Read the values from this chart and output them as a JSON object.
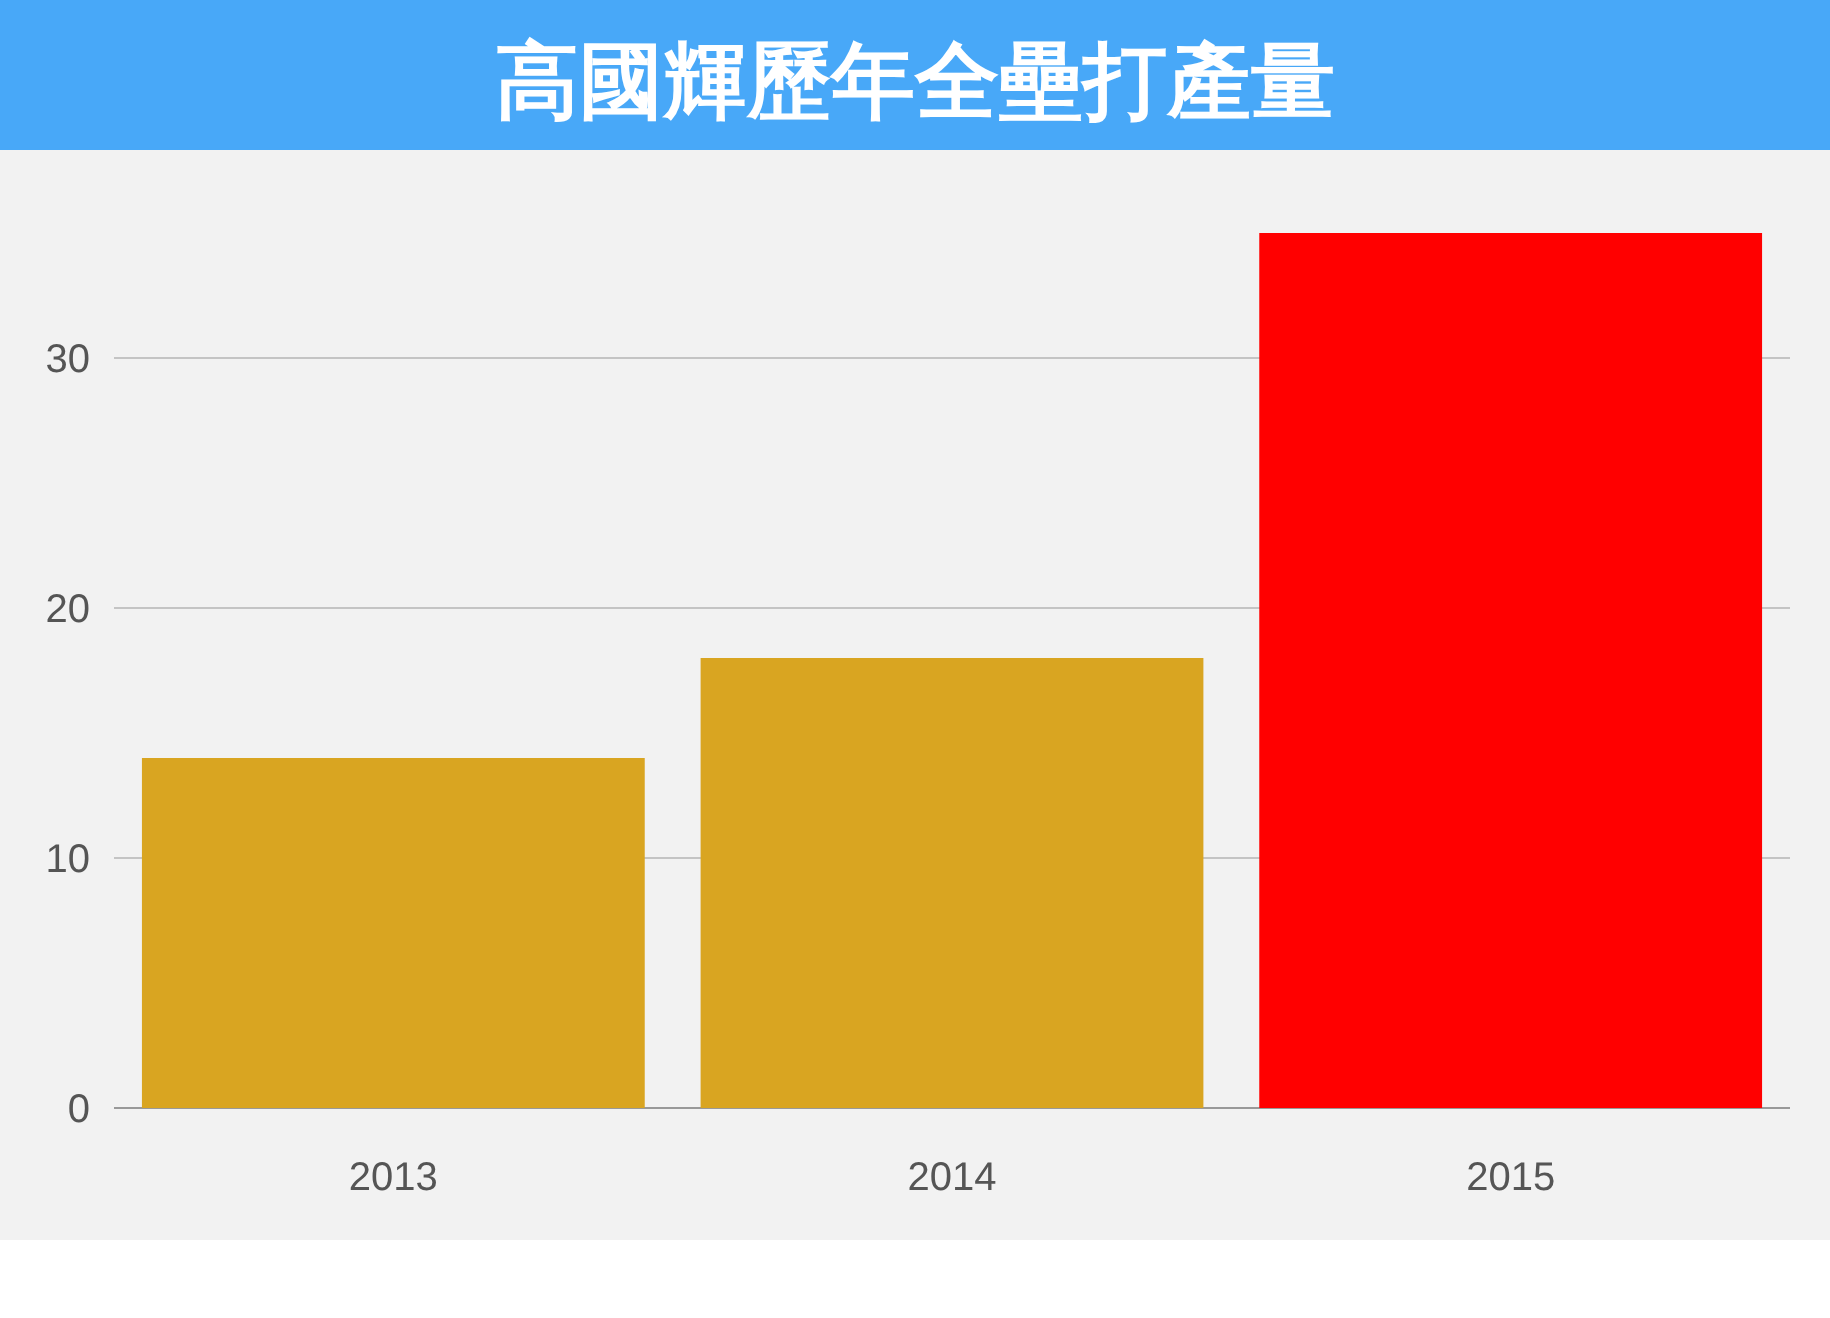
{
  "chart_data": {
    "type": "bar",
    "title": "高國輝歷年全壘打產量",
    "categories": [
      "2013",
      "2014",
      "2015"
    ],
    "values": [
      14,
      18,
      35
    ],
    "colors": [
      "#d9a521",
      "#d9a521",
      "#ff0000"
    ],
    "ylim": [
      0,
      35
    ],
    "yticks": [
      0,
      10,
      20,
      30
    ],
    "grid": "y"
  }
}
